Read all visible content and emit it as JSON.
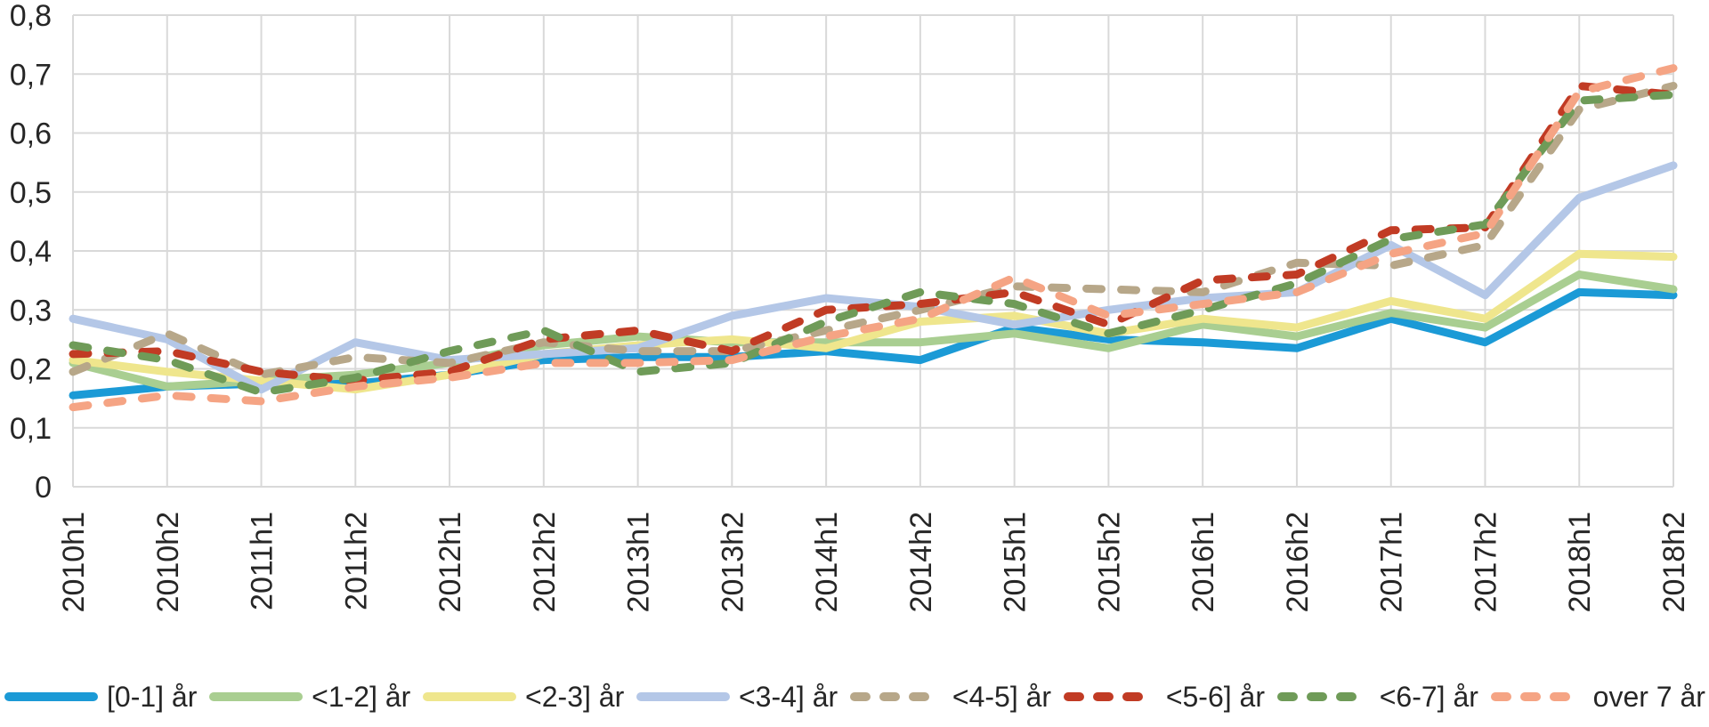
{
  "page": {
    "background": "#ffffff"
  },
  "axis_style": {
    "tick_label_color": "#262626",
    "grid_color": "#d9d9d9"
  },
  "chart_data": {
    "type": "line",
    "title": "",
    "xlabel": "",
    "ylabel": "",
    "ylim": [
      0,
      0.8
    ],
    "y_tick_step": 0.1,
    "y_tick_labels": [
      "0",
      "0,1",
      "0,2",
      "0,3",
      "0,4",
      "0,5",
      "0,6",
      "0,7",
      "0,8"
    ],
    "decimal_separator": ",",
    "grid": true,
    "legend_position": "bottom",
    "categories": [
      "2010h1",
      "2010h2",
      "2011h1",
      "2011h2",
      "2012h1",
      "2012h2",
      "2013h1",
      "2013h2",
      "2014h1",
      "2014h2",
      "2015h1",
      "2015h2",
      "2016h1",
      "2016h2",
      "2017h1",
      "2017h2",
      "2018h1",
      "2018h2"
    ],
    "series": [
      {
        "name": "[0-1] år",
        "color": "#1b9ad6",
        "style": "solid",
        "values": [
          0.155,
          0.17,
          0.175,
          0.175,
          0.19,
          0.215,
          0.22,
          0.22,
          0.23,
          0.215,
          0.27,
          0.25,
          0.245,
          0.235,
          0.285,
          0.245,
          0.33,
          0.325
        ]
      },
      {
        "name": "<1-2] år",
        "color": "#a9ce91",
        "style": "solid",
        "values": [
          0.21,
          0.17,
          0.18,
          0.19,
          0.21,
          0.24,
          0.255,
          0.245,
          0.245,
          0.245,
          0.26,
          0.235,
          0.275,
          0.255,
          0.295,
          0.27,
          0.36,
          0.335
        ]
      },
      {
        "name": "<2-3] år",
        "color": "#efe68d",
        "style": "solid",
        "values": [
          0.215,
          0.195,
          0.18,
          0.165,
          0.19,
          0.225,
          0.24,
          0.25,
          0.235,
          0.28,
          0.29,
          0.26,
          0.285,
          0.27,
          0.315,
          0.285,
          0.395,
          0.39
        ]
      },
      {
        "name": "<3-4] år",
        "color": "#b4c7e7",
        "style": "solid",
        "values": [
          0.285,
          0.25,
          0.165,
          0.245,
          0.215,
          0.225,
          0.235,
          0.29,
          0.32,
          0.305,
          0.275,
          0.3,
          0.32,
          0.33,
          0.41,
          0.325,
          0.49,
          0.545
        ]
      },
      {
        "name": "<4-5] år",
        "color": "#b7a789",
        "style": "dashed",
        "values": [
          0.195,
          0.26,
          0.19,
          0.22,
          0.21,
          0.245,
          0.23,
          0.23,
          0.265,
          0.3,
          0.34,
          0.335,
          0.33,
          0.38,
          0.375,
          0.41,
          0.64,
          0.68
        ]
      },
      {
        "name": "<5-6] år",
        "color": "#c13b24",
        "style": "dashed",
        "values": [
          0.225,
          0.23,
          0.195,
          0.18,
          0.195,
          0.25,
          0.265,
          0.23,
          0.3,
          0.31,
          0.33,
          0.275,
          0.35,
          0.36,
          0.435,
          0.44,
          0.68,
          0.665
        ]
      },
      {
        "name": "<6-7] år",
        "color": "#6f9b58",
        "style": "dashed",
        "values": [
          0.24,
          0.215,
          0.16,
          0.185,
          0.23,
          0.265,
          0.195,
          0.21,
          0.28,
          0.33,
          0.31,
          0.26,
          0.3,
          0.345,
          0.42,
          0.445,
          0.655,
          0.665
        ]
      },
      {
        "name": "over 7 år",
        "color": "#f5a484",
        "style": "dashed",
        "values": [
          0.135,
          0.155,
          0.145,
          0.17,
          0.185,
          0.21,
          0.21,
          0.215,
          0.255,
          0.285,
          0.355,
          0.29,
          0.31,
          0.33,
          0.395,
          0.43,
          0.67,
          0.71
        ]
      }
    ]
  }
}
